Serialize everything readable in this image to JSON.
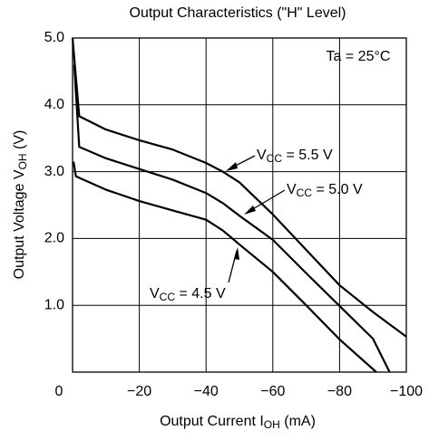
{
  "chart_data": {
    "type": "line",
    "title": "Output Characteristics  (\"H\" Level)",
    "x_label": [
      "Output Current  I",
      "OH",
      "  (mA)"
    ],
    "y_label": [
      "Output Voltage  V",
      "OH",
      "  (V)"
    ],
    "annotation": "Ta = 25°C",
    "xlim": [
      0,
      -100
    ],
    "ylim": [
      0,
      5
    ],
    "xticks": [
      0,
      {
        "value": -20,
        "label": "−20"
      },
      {
        "value": -40,
        "label": "−40"
      },
      {
        "value": -60,
        "label": "−60"
      },
      {
        "value": -80,
        "label": "−80"
      },
      {
        "value": -100,
        "label": "−100"
      }
    ],
    "yticks": [
      {
        "value": 1,
        "label": "1.0"
      },
      {
        "value": 2,
        "label": "2.0"
      },
      {
        "value": 3,
        "label": "3.0"
      },
      {
        "value": 4,
        "label": "4.0"
      },
      {
        "value": 5,
        "label": "5.0"
      }
    ],
    "grid": true,
    "series": [
      {
        "name": [
          "V",
          "CC",
          " = 5.5 V"
        ],
        "color": "#000000",
        "x": [
          0,
          -2,
          -10,
          -20,
          -30,
          -40,
          -45,
          -50,
          -60,
          -70,
          -80,
          -90,
          -100
        ],
        "values": [
          5.0,
          3.83,
          3.63,
          3.47,
          3.33,
          3.13,
          3.0,
          2.84,
          2.36,
          1.83,
          1.3,
          0.9,
          0.53
        ]
      },
      {
        "name": [
          "V",
          "CC",
          " = 5.0 V"
        ],
        "color": "#000000",
        "x": [
          -0.5,
          -2,
          -10,
          -20,
          -30,
          -40,
          -45,
          -50,
          -60,
          -70,
          -80,
          -90,
          -95
        ],
        "values": [
          4.6,
          3.37,
          3.2,
          3.04,
          2.88,
          2.68,
          2.53,
          2.34,
          1.98,
          1.48,
          0.99,
          0.5,
          0
        ]
      },
      {
        "name": [
          "V",
          "CC",
          " = 4.5 V"
        ],
        "color": "#000000",
        "x": [
          -0.3,
          -1,
          -10,
          -20,
          -30,
          -40,
          -45,
          -50,
          -60,
          -70,
          -80,
          -91
        ],
        "values": [
          3.15,
          2.93,
          2.73,
          2.56,
          2.42,
          2.28,
          2.12,
          1.91,
          1.5,
          1.0,
          0.49,
          0
        ]
      }
    ]
  }
}
